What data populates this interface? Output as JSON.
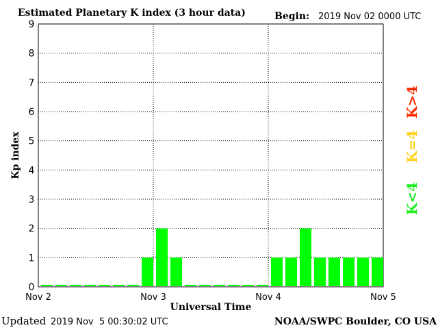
{
  "header": {
    "title": "Estimated Planetary K index (3 hour data)",
    "begin_label": "Begin:",
    "begin_value": "2019 Nov 02 0000 UTC"
  },
  "footer": {
    "updated_label": "Updated",
    "updated_value": "2019 Nov  5 00:30:02 UTC",
    "credit": "NOAA/SWPC Boulder, CO USA"
  },
  "legend": {
    "high": "K>4",
    "equal": "K=4",
    "low": "K<4"
  },
  "colors": {
    "bar_low": "#00ff00",
    "legend_high": "#ff2a00",
    "legend_equal": "#ffd21e",
    "legend_low": "#22ee22"
  },
  "chart_data": {
    "type": "bar",
    "title": "Estimated Planetary K index (3 hour data)",
    "xlabel": "Universal Time",
    "ylabel": "Kp index",
    "ylim": [
      0,
      9
    ],
    "yticks": [
      "0",
      "1",
      "2",
      "3",
      "4",
      "5",
      "6",
      "7",
      "8",
      "9"
    ],
    "xticks": [
      "Nov 2",
      "Nov 3",
      "Nov 4",
      "Nov 5"
    ],
    "grid": "dotted",
    "series": [
      {
        "values": [
          0,
          0,
          0,
          0,
          0,
          0,
          0,
          1,
          2,
          1,
          0,
          0,
          0,
          0,
          0,
          0,
          1,
          1,
          2,
          1,
          1,
          1,
          1,
          1
        ]
      }
    ]
  }
}
